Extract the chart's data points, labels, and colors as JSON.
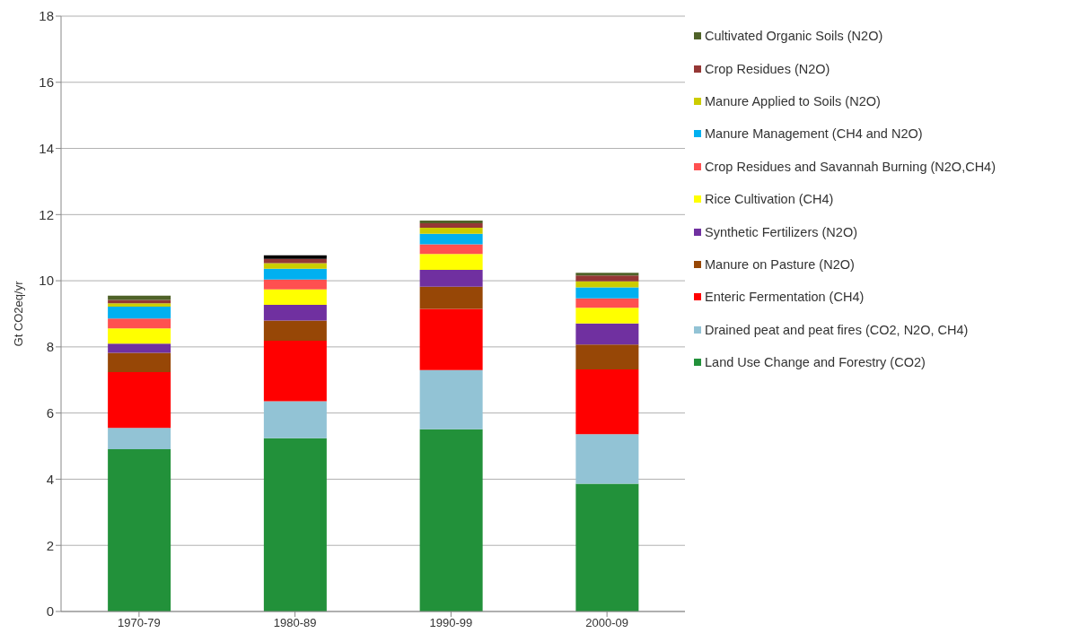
{
  "chart_data": {
    "type": "bar",
    "stacked": true,
    "ylabel": "Gt CO2eq/yr",
    "categories": [
      "1970-79",
      "1980-89",
      "1990-99",
      "2000-09"
    ],
    "ylim": [
      0,
      18
    ],
    "yticks": [
      0,
      2,
      4,
      6,
      8,
      10,
      12,
      14,
      16,
      18
    ],
    "grid": "y",
    "legend": "right",
    "series": [
      {
        "name": "Land Use Change and Forestry (CO2)",
        "color": "#22913a",
        "values": [
          4.91,
          5.24,
          5.51,
          3.86
        ]
      },
      {
        "name": "Drained peat and peat fires (CO2, N2O, CH4)",
        "color": "#92c3d5",
        "values": [
          0.64,
          1.12,
          1.79,
          1.5
        ]
      },
      {
        "name": "Enteric Fermentation (CH4)",
        "color": "#ff0000",
        "values": [
          1.69,
          1.83,
          1.85,
          1.96
        ]
      },
      {
        "name": "Manure on Pasture (N2O)",
        "color": "#974706",
        "values": [
          0.58,
          0.61,
          0.67,
          0.75
        ]
      },
      {
        "name": "Synthetic Fertilizers (N2O)",
        "color": "#7030a0",
        "values": [
          0.28,
          0.47,
          0.51,
          0.64
        ]
      },
      {
        "name": "Rice Cultivation (CH4)",
        "color": "#ffff00",
        "values": [
          0.46,
          0.47,
          0.48,
          0.47
        ]
      },
      {
        "name": "Crop Residues and Savannah Burning (N2O,CH4)",
        "color": "#ff5050",
        "values": [
          0.3,
          0.3,
          0.29,
          0.29
        ]
      },
      {
        "name": "Manure Management (CH4 and N2O)",
        "color": "#00b0f0",
        "values": [
          0.36,
          0.32,
          0.32,
          0.33
        ]
      },
      {
        "name": "Manure Applied to Soils (N2O)",
        "color": "#cccc00",
        "values": [
          0.1,
          0.17,
          0.18,
          0.18
        ]
      },
      {
        "name": "Crop Residues (N2O)",
        "color": "#953735",
        "values": [
          0.1,
          0.13,
          0.14,
          0.18
        ]
      },
      {
        "name": "Cultivated Organic Soils (N2O)",
        "color": "#4f6228",
        "colors": [
          "#4f6228",
          "#000000",
          "#4f6228",
          "#4f6228"
        ],
        "values": [
          0.13,
          0.11,
          0.08,
          0.08
        ]
      }
    ]
  }
}
